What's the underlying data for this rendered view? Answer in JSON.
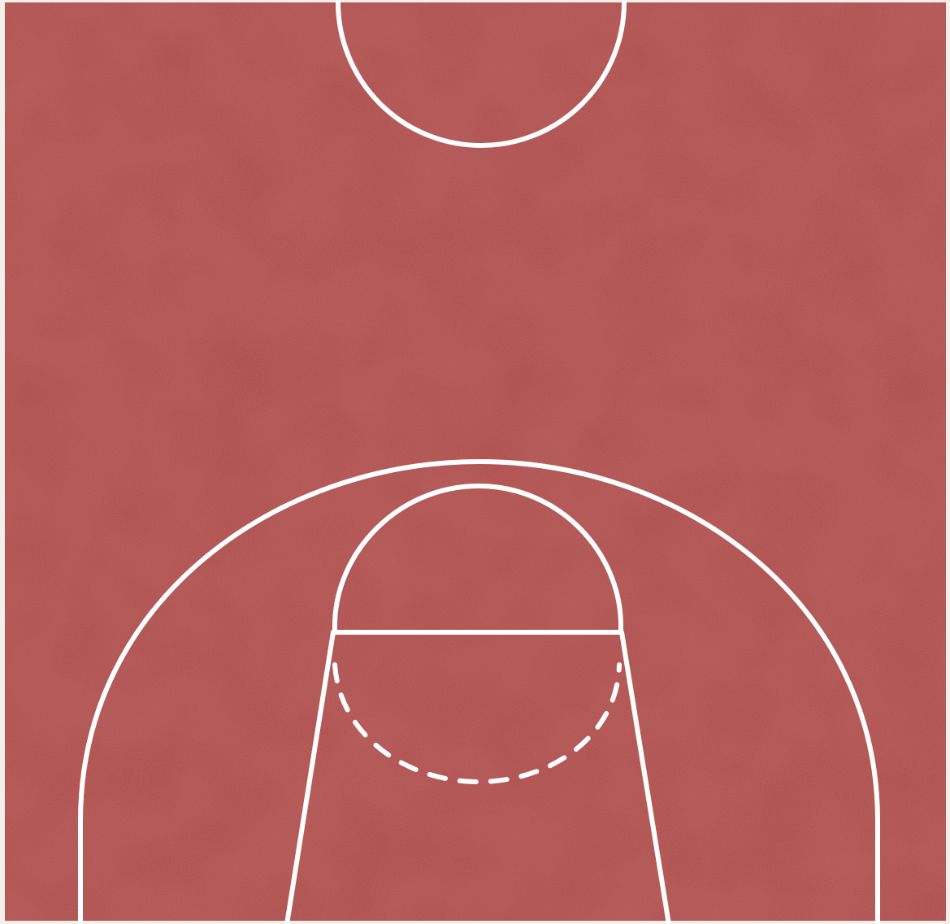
{
  "court": {
    "surface_color": "#a84442",
    "line_color": "#ffffff",
    "border_color": "#f4efe8",
    "surface_icon": "basketball-half-court",
    "texture": "grainy"
  }
}
